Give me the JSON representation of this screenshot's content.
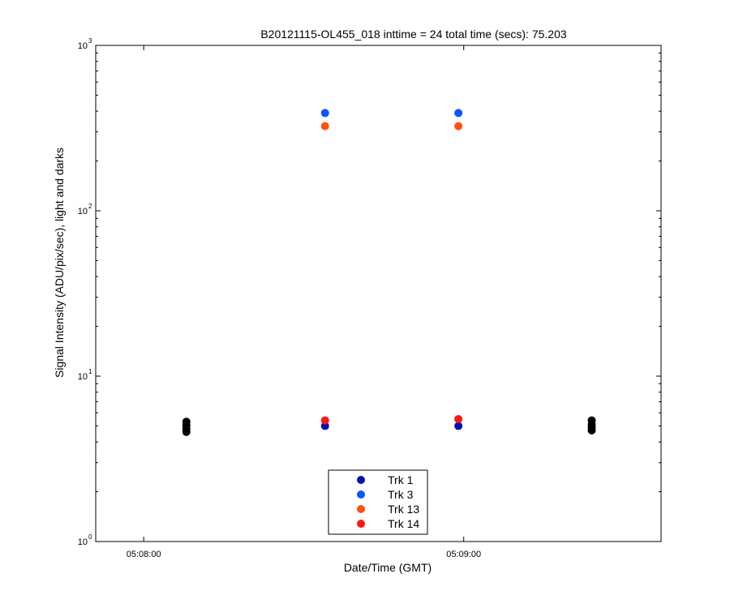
{
  "chart_data": {
    "type": "scatter",
    "title": "B20121115-OL455_018 inttime = 24 total time (secs): 75.203",
    "xlabel": "Date/Time (GMT)",
    "ylabel": "Signal Intensity (ADU/pix/sec), light and darks",
    "y_scale": "log",
    "ylim": [
      1,
      1000
    ],
    "xlim": [
      "05:07:51",
      "05:09:37"
    ],
    "x_ticks": [
      "05:08:00",
      "05:09:00"
    ],
    "y_ticks": [
      {
        "base": "10",
        "exp": "0",
        "value": 1
      },
      {
        "base": "10",
        "exp": "1",
        "value": 10
      },
      {
        "base": "10",
        "exp": "2",
        "value": 100
      },
      {
        "base": "10",
        "exp": "3",
        "value": 1000
      }
    ],
    "legend_position": "bottom-center",
    "series": [
      {
        "name": "Trk 1",
        "color": "#0010b0",
        "legend": true,
        "points": [
          {
            "x": "05:08:34",
            "y": 5.0
          },
          {
            "x": "05:08:59",
            "y": 5.0
          }
        ]
      },
      {
        "name": "Trk 3",
        "color": "#0a55ff",
        "legend": true,
        "points": [
          {
            "x": "05:08:34",
            "y": 390
          },
          {
            "x": "05:08:59",
            "y": 390
          }
        ]
      },
      {
        "name": "Trk 13",
        "color": "#ff5010",
        "legend": true,
        "points": [
          {
            "x": "05:08:34",
            "y": 325
          },
          {
            "x": "05:08:59",
            "y": 325
          }
        ]
      },
      {
        "name": "Trk 14",
        "color": "#ff1414",
        "legend": true,
        "points": [
          {
            "x": "05:08:34",
            "y": 5.4
          },
          {
            "x": "05:08:59",
            "y": 5.5
          }
        ]
      },
      {
        "name": "",
        "color": "#000000",
        "legend": false,
        "points": [
          {
            "x": "05:08:08",
            "y": 5.3
          },
          {
            "x": "05:08:08",
            "y": 5.05
          },
          {
            "x": "05:08:08",
            "y": 4.8
          },
          {
            "x": "05:08:08",
            "y": 4.6
          },
          {
            "x": "05:09:24",
            "y": 5.4
          },
          {
            "x": "05:09:24",
            "y": 5.1
          },
          {
            "x": "05:09:24",
            "y": 4.9
          },
          {
            "x": "05:09:24",
            "y": 4.7
          }
        ]
      }
    ]
  }
}
